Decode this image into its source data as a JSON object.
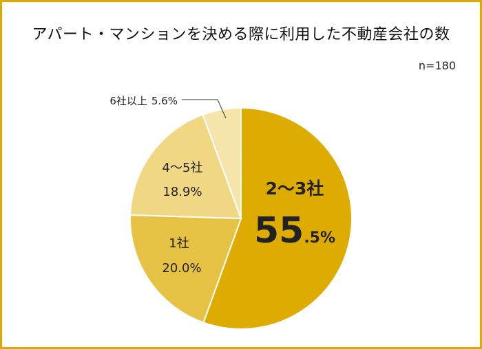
{
  "title": "アパート・マンションを決める際に利用した不動産会社の数",
  "sample_size": "n=180",
  "chart_data": {
    "type": "pie",
    "start": "12 o'clock",
    "direction": "clockwise",
    "slices": [
      {
        "label": "2〜3社",
        "value": 55.5,
        "value_big": "55",
        "value_small": ".5%",
        "color": "#deac00"
      },
      {
        "label": "1社",
        "value": 20.0,
        "value_text": "20.0%",
        "color": "#e6c244"
      },
      {
        "label": "4〜5社",
        "value": 18.9,
        "value_text": "18.9%",
        "color": "#efd784"
      },
      {
        "label": "6社以上",
        "value": 5.6,
        "value_text": "5.6%",
        "color": "#f5e5aa"
      }
    ]
  }
}
